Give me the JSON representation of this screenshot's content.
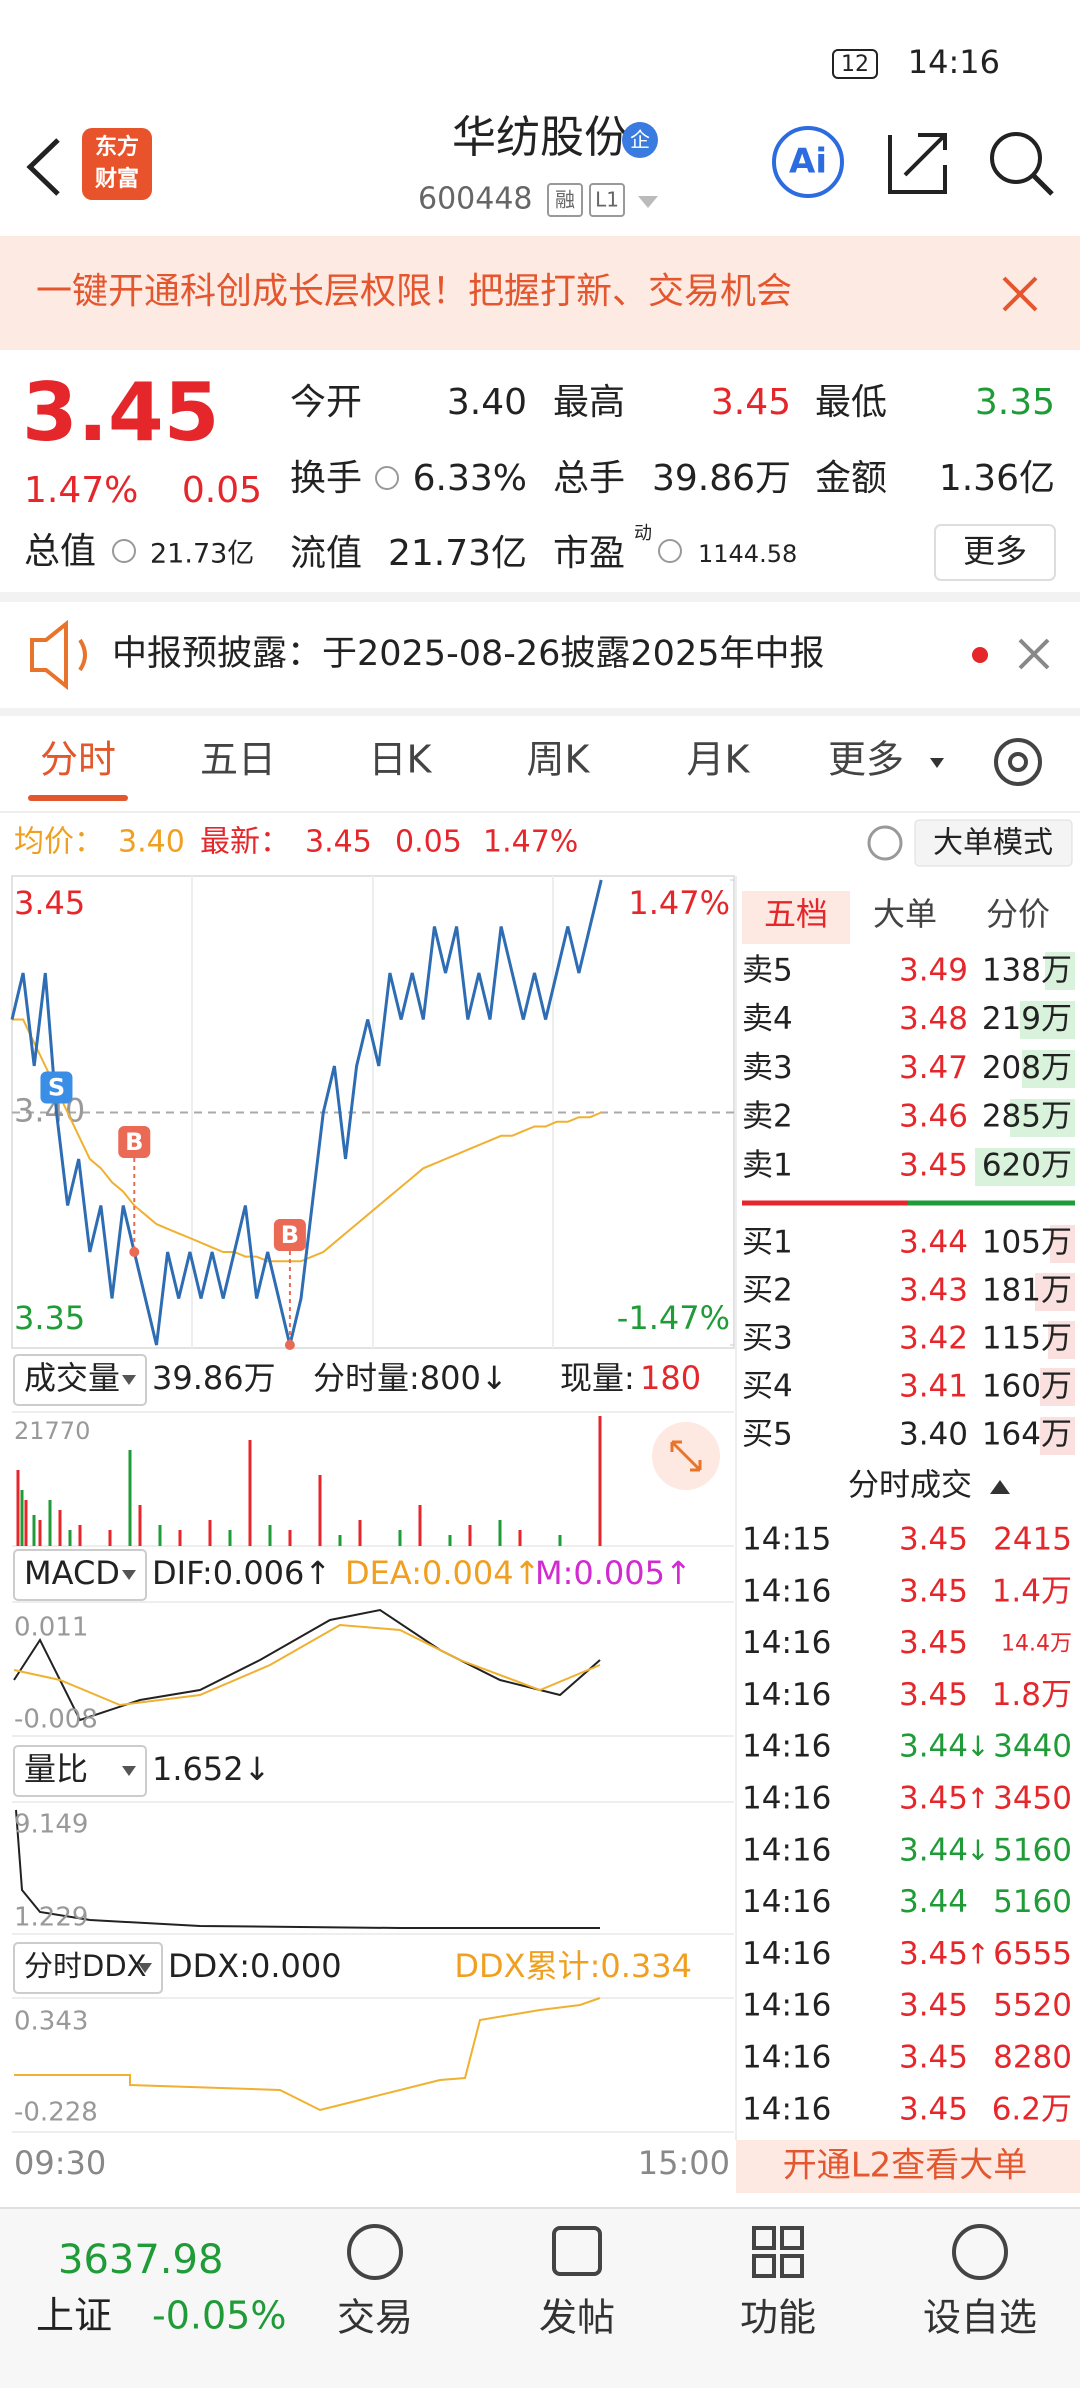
{
  "status_bar": {
    "time": "14:16",
    "battery": "12"
  },
  "header": {
    "logo": [
      "东方",
      "财富"
    ],
    "title": "华纺股份",
    "badge": "企",
    "code": "600448",
    "tags": [
      "融",
      "L1"
    ],
    "ai": "Ai"
  },
  "banner": {
    "text": "一键开通科创成长层权限！把握打新、交易机会"
  },
  "quote": {
    "price": "3.45",
    "change_pct": "1.47%",
    "change": "0.05",
    "stats": [
      {
        "label": "今开",
        "value": "3.40",
        "color": "#222222"
      },
      {
        "label": "最高",
        "value": "3.45",
        "color": "#e5262a"
      },
      {
        "label": "最低",
        "value": "3.35",
        "color": "#1f9b37"
      },
      {
        "label": "换手",
        "value": "6.33%",
        "color": "#222222"
      },
      {
        "label": "总手",
        "value": "39.86万",
        "color": "#222222"
      },
      {
        "label": "金额",
        "value": "1.36亿",
        "color": "#222222"
      }
    ],
    "total_value_label": "总值",
    "total_value": "21.73亿",
    "float_label": "流值",
    "float_value": "21.73亿",
    "pe_label": "市盈",
    "pe_sup": "动",
    "pe": "1144.58",
    "more": "更多"
  },
  "notice": {
    "text": "中报预披露：于2025-08-26披露2025年中报"
  },
  "tabs": [
    "分时",
    "五日",
    "日K",
    "周K",
    "月K",
    "更多"
  ],
  "chart_info": {
    "avg_label": "均价：",
    "avg": "3.40",
    "latest_label": "最新：",
    "latest": "3.45",
    "change": "0.05",
    "pct": "1.47%",
    "mode": "大单模式"
  },
  "chart_data": {
    "type": "line",
    "xlim": [
      "09:30",
      "15:00"
    ],
    "ylim": [
      3.35,
      3.45
    ],
    "yticks": [
      3.35,
      {
        "value": 3.4,
        "label": "3.40"
      },
      3.45
    ],
    "y2lim": [
      -1.47,
      1.47
    ],
    "y2ticks": [
      {
        "value": -1.47,
        "label": "-1.47%"
      },
      {
        "value": 1.47,
        "label": "1.47%"
      }
    ],
    "series": [
      {
        "color": "#2e6db4",
        "values": [
          3.42,
          3.43,
          3.41,
          3.43,
          3.4,
          3.38,
          3.39,
          3.37,
          3.38,
          3.36,
          3.38,
          3.37,
          3.36,
          3.35,
          3.37,
          3.36,
          3.37,
          3.36,
          3.37,
          3.36,
          3.37,
          3.38,
          3.36,
          3.37,
          3.36,
          3.35,
          3.36,
          3.38,
          3.4,
          3.41,
          3.39,
          3.41,
          3.42,
          3.41,
          3.43,
          3.42,
          3.43,
          3.42,
          3.44,
          3.43,
          3.44,
          3.42,
          3.43,
          3.42,
          3.44,
          3.43,
          3.42,
          3.43,
          3.42,
          3.43,
          3.44,
          3.43,
          3.44,
          3.45
        ]
      },
      {
        "color": "#f0b030",
        "values": [
          3.42,
          3.42,
          3.415,
          3.41,
          3.405,
          3.4,
          3.395,
          3.39,
          3.388,
          3.385,
          3.383,
          3.38,
          3.378,
          3.376,
          3.375,
          3.374,
          3.373,
          3.372,
          3.371,
          3.37,
          3.37,
          3.369,
          3.369,
          3.368,
          3.368,
          3.368,
          3.368,
          3.369,
          3.37,
          3.372,
          3.374,
          3.376,
          3.378,
          3.38,
          3.382,
          3.384,
          3.386,
          3.388,
          3.389,
          3.39,
          3.391,
          3.392,
          3.393,
          3.394,
          3.395,
          3.395,
          3.396,
          3.397,
          3.397,
          3.398,
          3.398,
          3.399,
          3.399,
          3.4
        ]
      }
    ],
    "markers": [
      {
        "label": "S",
        "color": "#3a8ee6"
      },
      {
        "label": "B",
        "color": "#ea6a55"
      },
      {
        "label": "B",
        "color": "#ea6a55"
      }
    ]
  },
  "volume": {
    "label": "成交量",
    "total": "39.86万",
    "period": "分时量:800↓",
    "current_label": "现量:",
    "current": "180",
    "max": "21770"
  },
  "macd": {
    "label": "MACD",
    "dif": "DIF:0.006↑",
    "dea": "DEA:0.004↑",
    "m": "M:0.005↑",
    "max": "0.011",
    "min": "-0.008"
  },
  "volume_ratio": {
    "label": "量比",
    "value": "1.652↓",
    "max": "9.149",
    "min": "1.229"
  },
  "ddx": {
    "label": "分时DDX",
    "ddx": "DDX:0.000",
    "cum": "DDX累计:0.334",
    "max": "0.343",
    "min": "-0.228"
  },
  "order_book": {
    "tabs": [
      "五档",
      "大单",
      "分价"
    ],
    "asks": [
      {
        "label": "卖5",
        "price": "3.49",
        "volume": "138万",
        "color": "#e5262a"
      },
      {
        "label": "卖4",
        "price": "3.48",
        "volume": "219万",
        "color": "#e5262a"
      },
      {
        "label": "卖3",
        "price": "3.47",
        "volume": "208万",
        "color": "#e5262a"
      },
      {
        "label": "卖2",
        "price": "3.46",
        "volume": "285万",
        "color": "#e5262a"
      },
      {
        "label": "卖1",
        "price": "3.45",
        "volume": "620万",
        "color": "#e5262a"
      }
    ],
    "bids": [
      {
        "label": "买1",
        "price": "3.44",
        "volume": "105万",
        "color": "#e5262a"
      },
      {
        "label": "买2",
        "price": "3.43",
        "volume": "181万",
        "color": "#e5262a"
      },
      {
        "label": "买3",
        "price": "3.42",
        "volume": "115万",
        "color": "#e5262a"
      },
      {
        "label": "买4",
        "price": "3.41",
        "volume": "160万",
        "color": "#e5262a"
      },
      {
        "label": "买5",
        "price": "3.40",
        "volume": "164万",
        "color": "#222222"
      }
    ]
  },
  "trades": {
    "title": "分时成交",
    "rows": [
      {
        "time": "14:15",
        "price": "3.45",
        "arrow": "",
        "volume": "2415",
        "color": "#e5262a"
      },
      {
        "time": "14:16",
        "price": "3.45",
        "arrow": "",
        "volume": "1.4万",
        "color": "#e5262a"
      },
      {
        "time": "14:16",
        "price": "3.45",
        "arrow": "",
        "volume": "14.4万",
        "color": "#e5262a"
      },
      {
        "time": "14:16",
        "price": "3.45",
        "arrow": "",
        "volume": "1.8万",
        "color": "#e5262a"
      },
      {
        "time": "14:16",
        "price": "3.44",
        "arrow": "↓",
        "volume": "3440",
        "color": "#1f9b37"
      },
      {
        "time": "14:16",
        "price": "3.45",
        "arrow": "↑",
        "volume": "3450",
        "color": "#e5262a"
      },
      {
        "time": "14:16",
        "price": "3.44",
        "arrow": "↓",
        "volume": "5160",
        "color": "#1f9b37"
      },
      {
        "time": "14:16",
        "price": "3.44",
        "arrow": "",
        "volume": "5160",
        "color": "#1f9b37"
      },
      {
        "time": "14:16",
        "price": "3.45",
        "arrow": "↑",
        "volume": "6555",
        "color": "#e5262a"
      },
      {
        "time": "14:16",
        "price": "3.45",
        "arrow": "",
        "volume": "5520",
        "color": "#e5262a"
      },
      {
        "time": "14:16",
        "price": "3.45",
        "arrow": "",
        "volume": "8280",
        "color": "#e5262a"
      },
      {
        "time": "14:16",
        "price": "3.45",
        "arrow": "",
        "volume": "6.2万",
        "color": "#e5262a"
      }
    ]
  },
  "l2": "开通L2查看大单",
  "bottom_nav": {
    "index_value": "3637.98",
    "index_name": "上证",
    "index_change": "-0.05%",
    "items": [
      "交易",
      "发帖",
      "功能",
      "设自选"
    ]
  }
}
